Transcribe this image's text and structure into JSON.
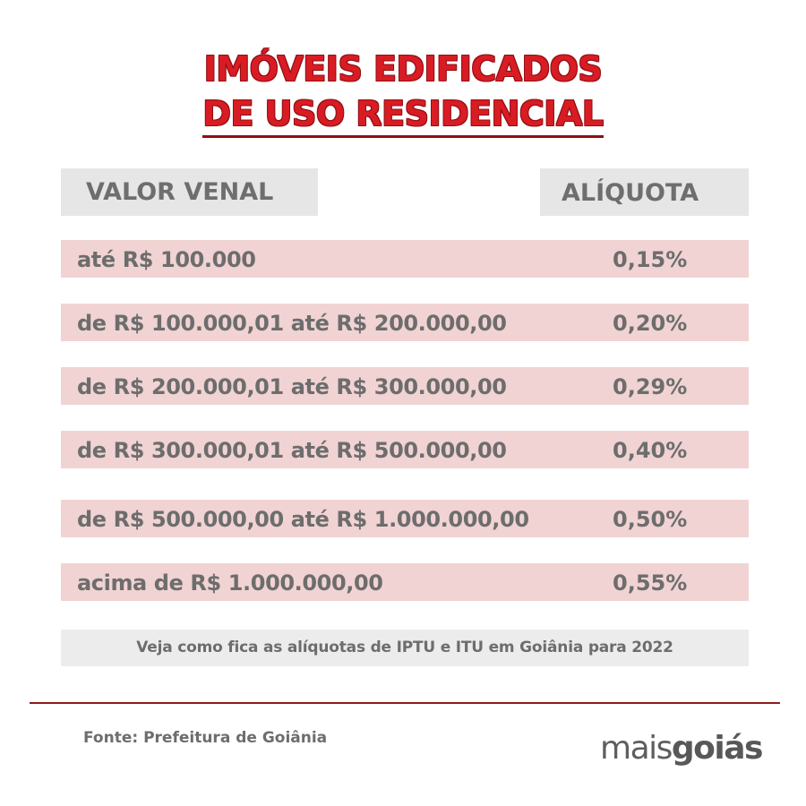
{
  "title": {
    "line1": "IMÓVEIS EDIFICADOS",
    "line2": "DE USO RESIDENCIAL"
  },
  "table": {
    "headers": {
      "valor_venal": "VALOR VENAL",
      "aliquota": "ALÍQUOTA"
    },
    "rows": [
      {
        "range": "até R$ 100.000",
        "rate": "0,15%"
      },
      {
        "range": "de R$ 100.000,01 até R$ 200.000,00",
        "rate": "0,20%"
      },
      {
        "range": "de R$ 200.000,01 até R$ 300.000,00",
        "rate": "0,29%"
      },
      {
        "range": "de R$ 300.000,01 até R$ 500.000,00",
        "rate": "0,40%"
      },
      {
        "range": "de R$ 500.000,00 até R$ 1.000.000,00",
        "rate": "0,50%"
      },
      {
        "range": "acima de R$ 1.000.000,00",
        "rate": "0,55%"
      }
    ]
  },
  "note": "Veja como fica as alíquotas de IPTU e ITU em Goiânia para 2022",
  "source": "Fonte: Prefeitura de Goiânia",
  "logo": {
    "part1": "mais",
    "part2": "goiás"
  },
  "colors": {
    "title": "#d91c24",
    "row_bg": "#f1d3d3",
    "header_bg": "#e6e6e6",
    "divider": "#8f1a1a"
  }
}
